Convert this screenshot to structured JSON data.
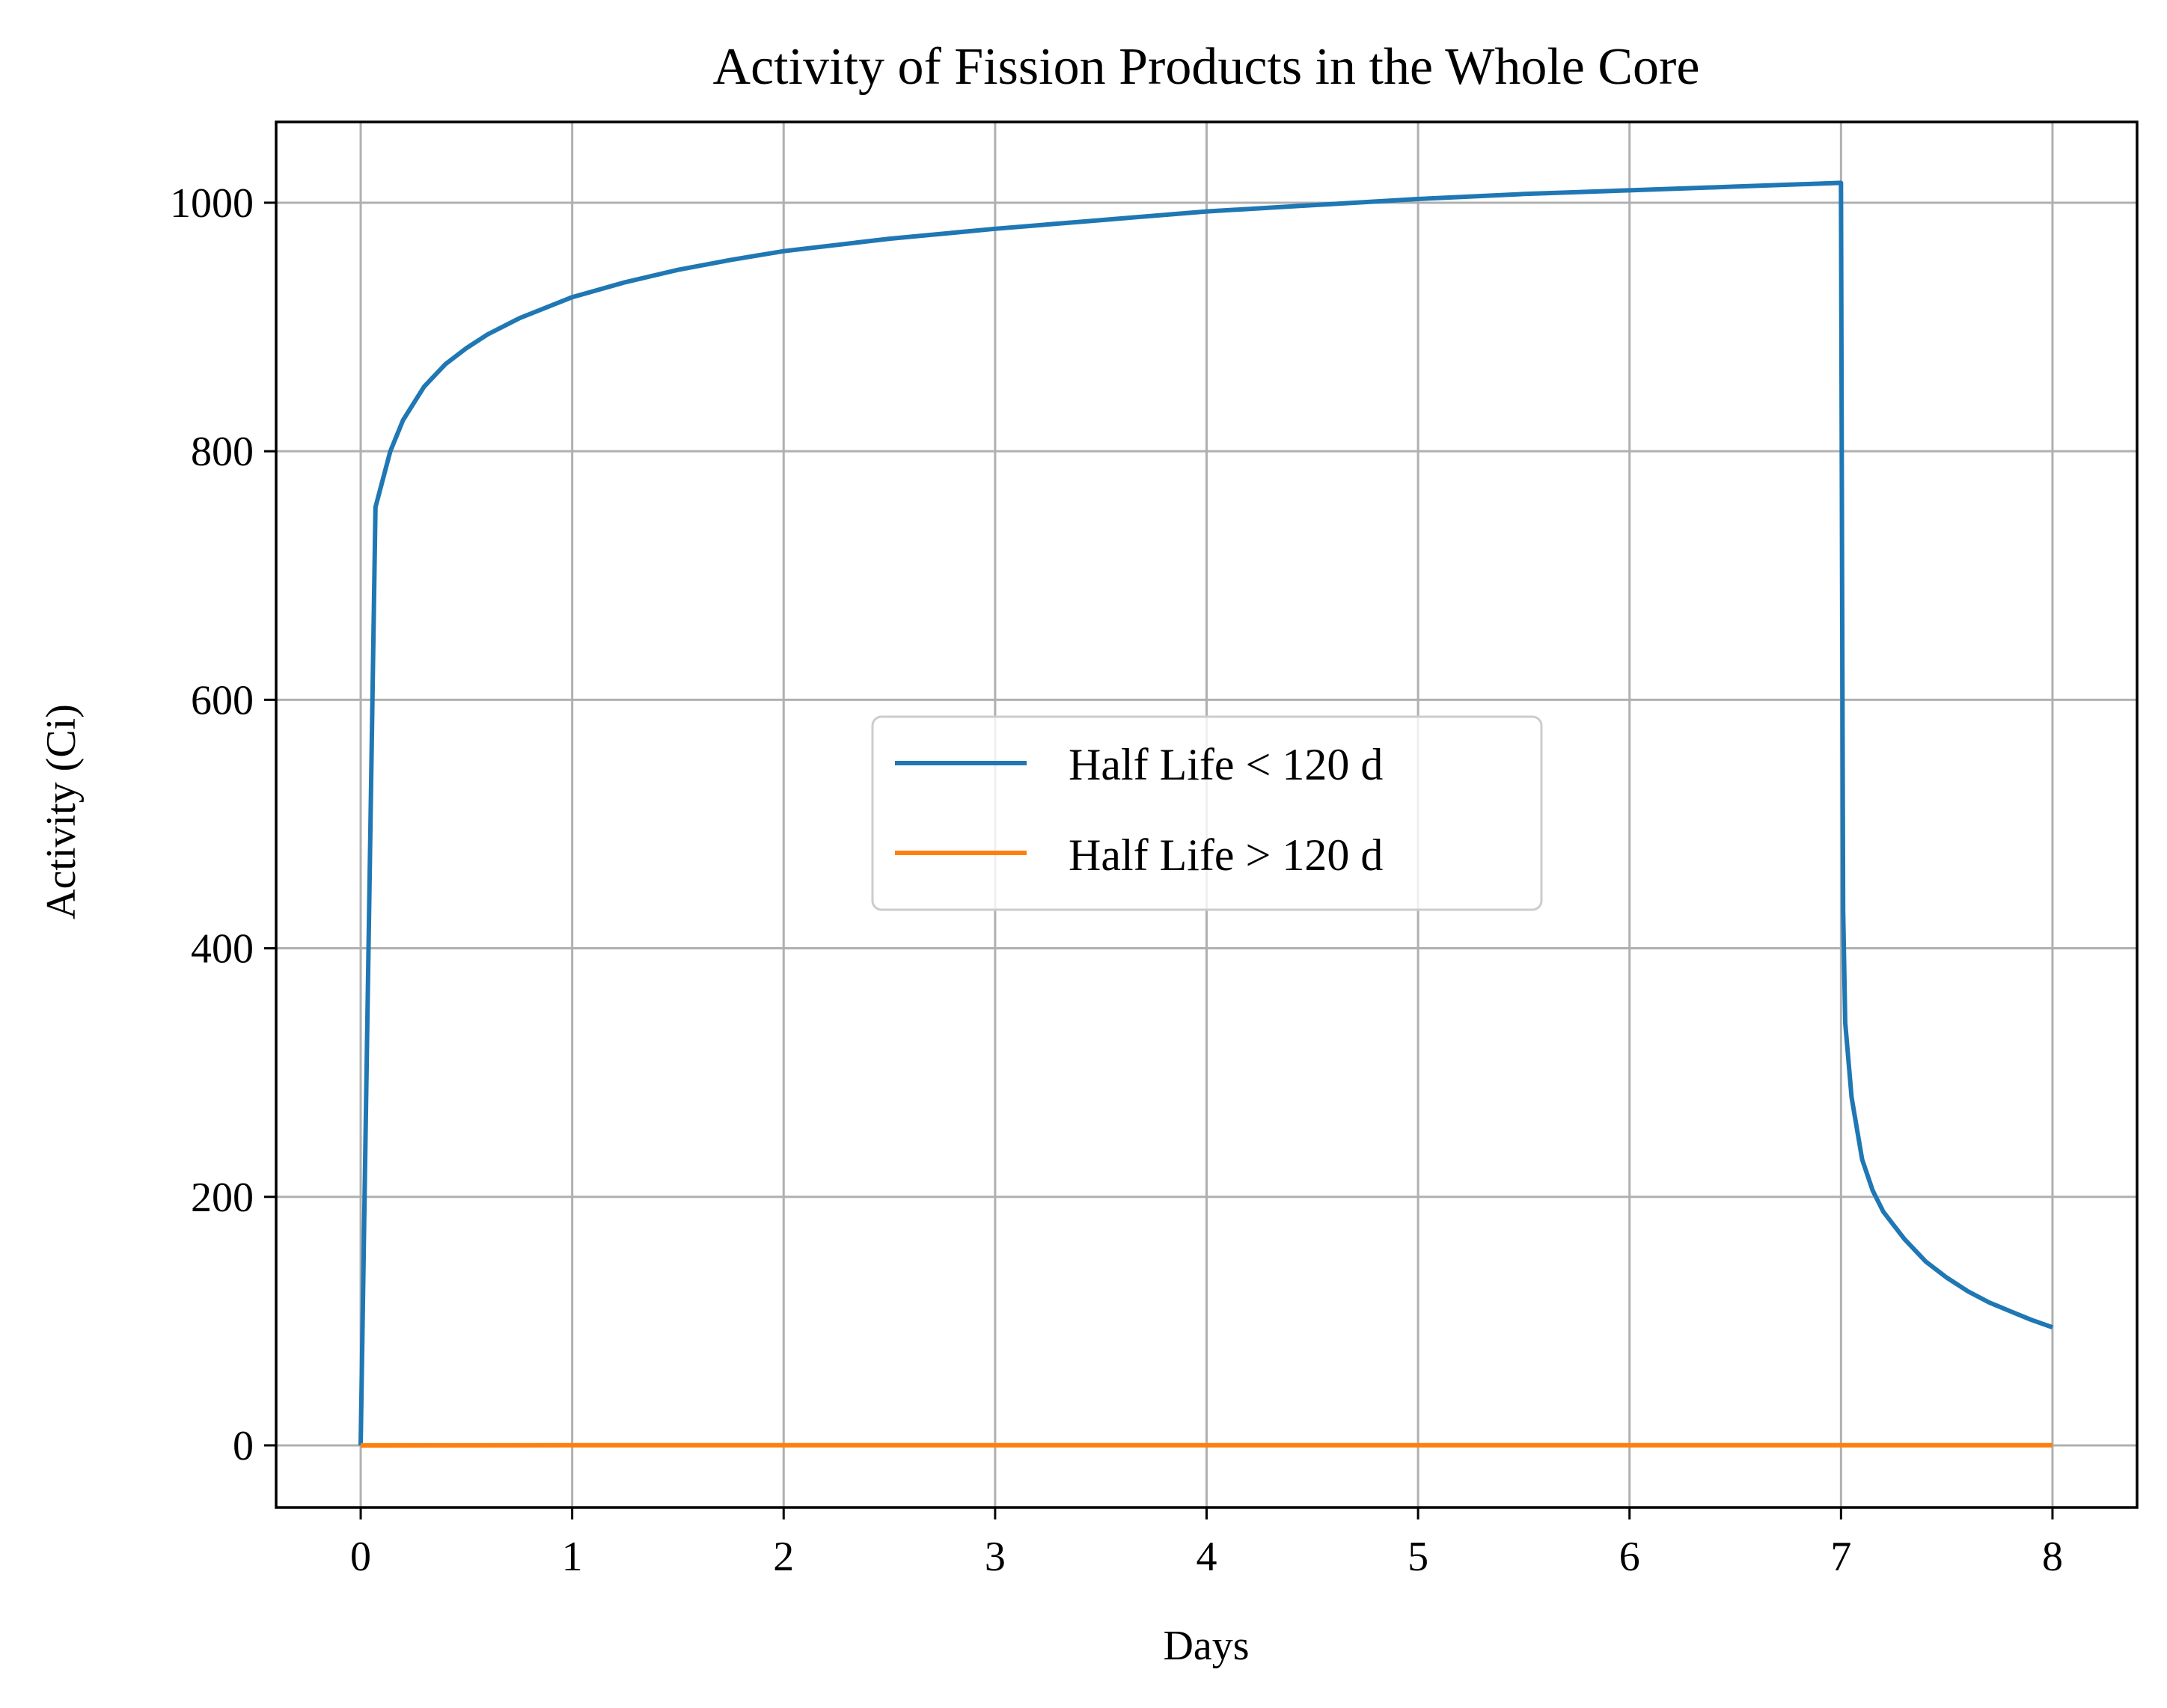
{
  "chart_data": {
    "type": "line",
    "title": "Activity of Fission Products in the Whole Core",
    "xlabel": "Days",
    "ylabel": "Activity (Ci)",
    "xlim": [
      -0.4,
      8.4
    ],
    "ylim": [
      -50,
      1065
    ],
    "xticks": [
      0,
      1,
      2,
      3,
      4,
      5,
      6,
      7,
      8
    ],
    "yticks": [
      0,
      200,
      400,
      600,
      800,
      1000
    ],
    "grid": true,
    "legend_position": "center",
    "series": [
      {
        "name": "Half Life < 120 d",
        "color": "#1f77b4",
        "points": [
          [
            0,
            0
          ],
          [
            0.07,
            755
          ],
          [
            0.14,
            800
          ],
          [
            0.2,
            825
          ],
          [
            0.3,
            852
          ],
          [
            0.4,
            870
          ],
          [
            0.5,
            883
          ],
          [
            0.6,
            894
          ],
          [
            0.75,
            907
          ],
          [
            1.0,
            924
          ],
          [
            1.25,
            936
          ],
          [
            1.5,
            946
          ],
          [
            1.75,
            954
          ],
          [
            2.0,
            961
          ],
          [
            2.5,
            971
          ],
          [
            3.0,
            979
          ],
          [
            3.5,
            986
          ],
          [
            4.0,
            993
          ],
          [
            4.5,
            998
          ],
          [
            5.0,
            1003
          ],
          [
            5.5,
            1007
          ],
          [
            6.0,
            1010
          ],
          [
            6.5,
            1013
          ],
          [
            7.0,
            1016
          ],
          [
            7.005,
            700
          ],
          [
            7.01,
            430
          ],
          [
            7.02,
            340
          ],
          [
            7.05,
            280
          ],
          [
            7.1,
            230
          ],
          [
            7.15,
            205
          ],
          [
            7.2,
            188
          ],
          [
            7.3,
            166
          ],
          [
            7.4,
            148
          ],
          [
            7.5,
            135
          ],
          [
            7.6,
            124
          ],
          [
            7.7,
            115
          ],
          [
            7.8,
            108
          ],
          [
            7.9,
            101
          ],
          [
            8.0,
            95
          ]
        ]
      },
      {
        "name": "Half Life > 120 d",
        "color": "#ff7f0e",
        "points": [
          [
            0,
            0
          ],
          [
            1,
            0.1
          ],
          [
            2,
            0.1
          ],
          [
            3,
            0.1
          ],
          [
            4,
            0.1
          ],
          [
            5,
            0.1
          ],
          [
            6,
            0.1
          ],
          [
            7,
            0.1
          ],
          [
            8,
            0.1
          ]
        ]
      }
    ]
  }
}
